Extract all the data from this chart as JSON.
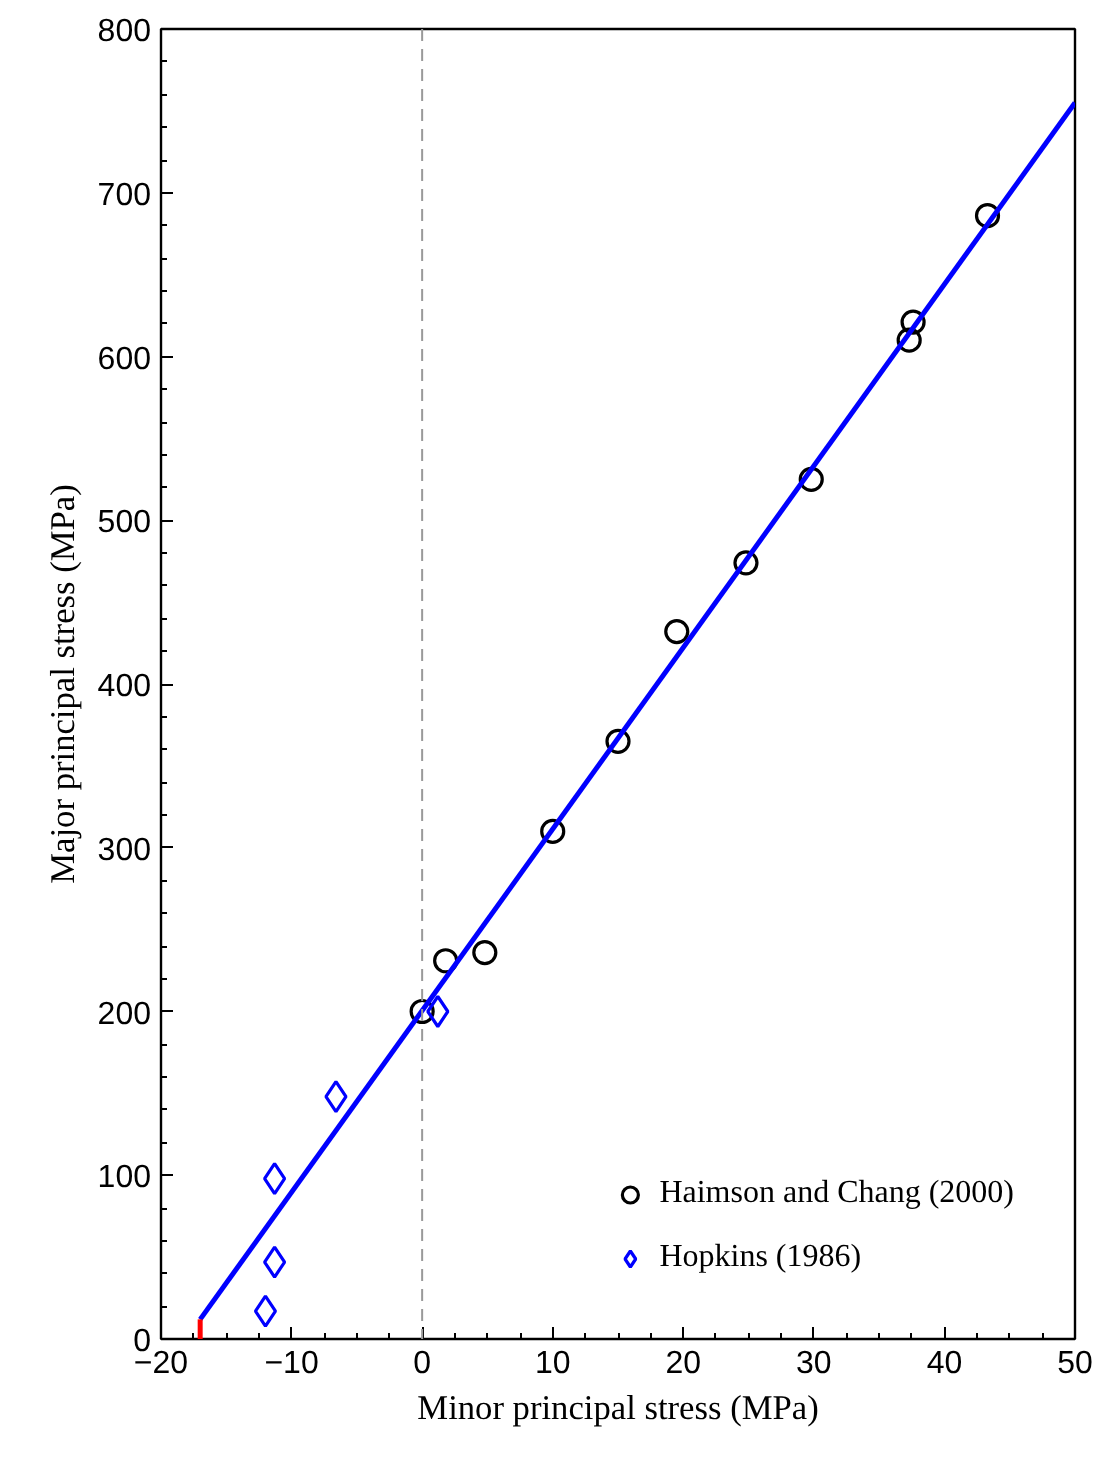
{
  "chart_data": {
    "type": "scatter",
    "xlabel": "Minor principal stress (MPa)",
    "ylabel": "Major principal stress (MPa)",
    "xlim": [
      -20,
      50
    ],
    "ylim": [
      0,
      800
    ],
    "xticks": [
      -20,
      -10,
      0,
      10,
      20,
      30,
      40,
      50
    ],
    "yticks": [
      0,
      100,
      200,
      300,
      400,
      500,
      600,
      700,
      800
    ],
    "grid": false,
    "legend": "bottom right",
    "series": [
      {
        "name": "Haimson and Chang (2000)",
        "marker": "circle",
        "color": "#000000",
        "x": [
          0,
          1.8,
          4.8,
          10,
          15,
          19.5,
          24.8,
          29.8,
          37.3,
          37.6,
          43.3
        ],
        "values": [
          200,
          231,
          236,
          310,
          365,
          432,
          474,
          525,
          610,
          621,
          686
        ]
      },
      {
        "name": "Hopkins (1986)",
        "marker": "diamond",
        "color": "#0000ff",
        "x": [
          -12,
          -11.3,
          -11.3,
          -6.6,
          1.2
        ],
        "values": [
          17,
          47,
          98,
          148,
          200
        ]
      },
      {
        "type": "line",
        "color": "#0000ff",
        "line_style": "solid",
        "x": [
          -17,
          50
        ],
        "values": [
          12,
          755
        ]
      },
      {
        "type": "line",
        "color": "#ff0000",
        "line_style": "solid",
        "x": [
          -17,
          -17
        ],
        "values": [
          0,
          12
        ]
      }
    ],
    "ref_lines": [
      {
        "axis": "x",
        "value": 0,
        "color": "#999999",
        "line_style": "dashed"
      }
    ]
  }
}
